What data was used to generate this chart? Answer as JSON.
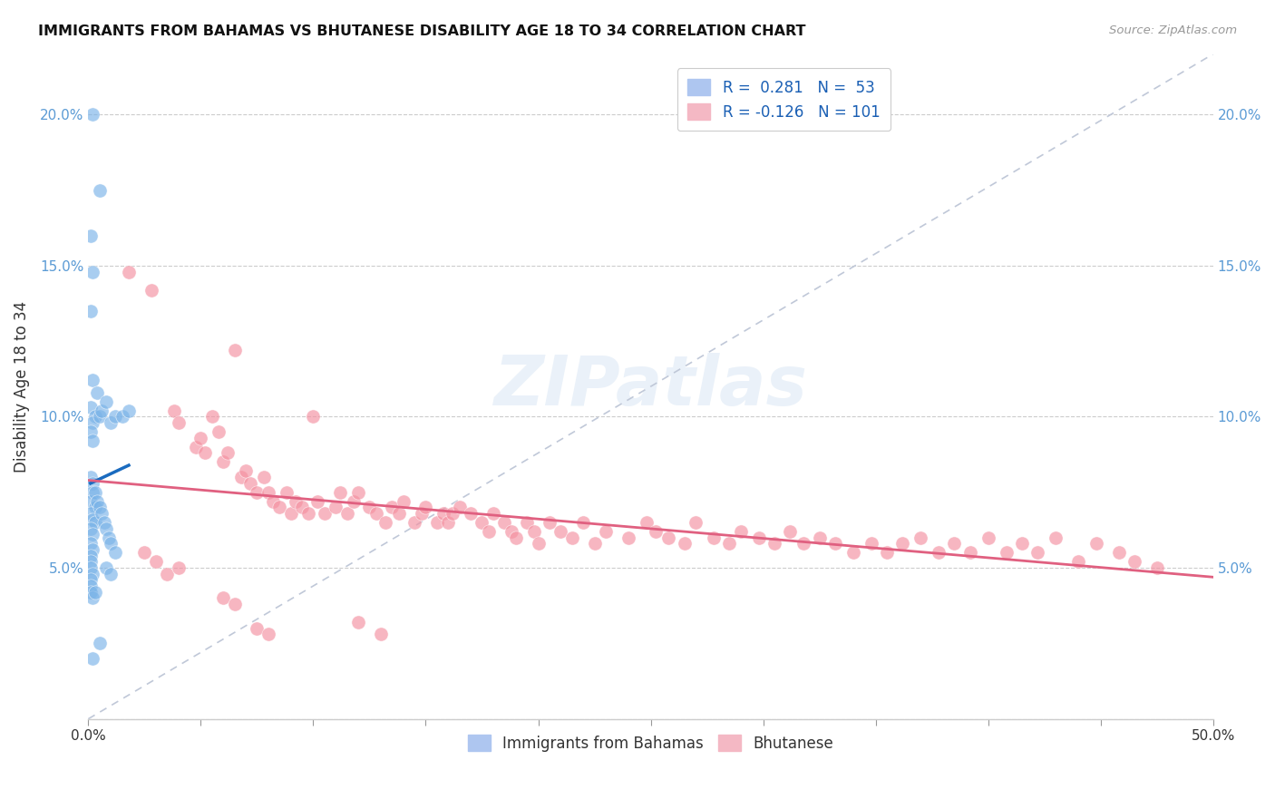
{
  "title": "IMMIGRANTS FROM BAHAMAS VS BHUTANESE DISABILITY AGE 18 TO 34 CORRELATION CHART",
  "source": "Source: ZipAtlas.com",
  "ylabel": "Disability Age 18 to 34",
  "xlim": [
    0.0,
    0.5
  ],
  "ylim": [
    0.0,
    0.22
  ],
  "y_ticks": [
    0.0,
    0.05,
    0.1,
    0.15,
    0.2
  ],
  "x_ticks": [
    0.0,
    0.05,
    0.1,
    0.15,
    0.2,
    0.25,
    0.3,
    0.35,
    0.4,
    0.45,
    0.5
  ],
  "legend_labels": [
    "Immigrants from Bahamas",
    "Bhutanese"
  ],
  "bahamas_color": "#7ab3e8",
  "bhutanese_color": "#f490a0",
  "bahamas_line_color": "#1a6bbf",
  "bhutanese_line_color": "#e06080",
  "dash_color": "#c0c8d8",
  "watermark": "ZIPatlas",
  "bahamas_scatter": [
    [
      0.002,
      0.2
    ],
    [
      0.005,
      0.175
    ],
    [
      0.001,
      0.16
    ],
    [
      0.002,
      0.148
    ],
    [
      0.001,
      0.135
    ],
    [
      0.002,
      0.112
    ],
    [
      0.004,
      0.108
    ],
    [
      0.001,
      0.103
    ],
    [
      0.003,
      0.1
    ],
    [
      0.002,
      0.098
    ],
    [
      0.001,
      0.095
    ],
    [
      0.002,
      0.092
    ],
    [
      0.005,
      0.1
    ],
    [
      0.006,
      0.102
    ],
    [
      0.008,
      0.105
    ],
    [
      0.01,
      0.098
    ],
    [
      0.012,
      0.1
    ],
    [
      0.015,
      0.1
    ],
    [
      0.018,
      0.102
    ],
    [
      0.001,
      0.08
    ],
    [
      0.002,
      0.078
    ],
    [
      0.002,
      0.075
    ],
    [
      0.001,
      0.072
    ],
    [
      0.003,
      0.07
    ],
    [
      0.001,
      0.068
    ],
    [
      0.002,
      0.066
    ],
    [
      0.003,
      0.065
    ],
    [
      0.001,
      0.063
    ],
    [
      0.002,
      0.061
    ],
    [
      0.001,
      0.058
    ],
    [
      0.002,
      0.056
    ],
    [
      0.001,
      0.054
    ],
    [
      0.001,
      0.052
    ],
    [
      0.001,
      0.05
    ],
    [
      0.002,
      0.048
    ],
    [
      0.001,
      0.046
    ],
    [
      0.001,
      0.044
    ],
    [
      0.001,
      0.042
    ],
    [
      0.002,
      0.04
    ],
    [
      0.003,
      0.075
    ],
    [
      0.004,
      0.072
    ],
    [
      0.005,
      0.07
    ],
    [
      0.006,
      0.068
    ],
    [
      0.007,
      0.065
    ],
    [
      0.008,
      0.063
    ],
    [
      0.009,
      0.06
    ],
    [
      0.01,
      0.058
    ],
    [
      0.012,
      0.055
    ],
    [
      0.008,
      0.05
    ],
    [
      0.01,
      0.048
    ],
    [
      0.003,
      0.042
    ],
    [
      0.005,
      0.025
    ],
    [
      0.002,
      0.02
    ]
  ],
  "bhutanese_scatter": [
    [
      0.018,
      0.148
    ],
    [
      0.028,
      0.142
    ],
    [
      0.038,
      0.102
    ],
    [
      0.04,
      0.098
    ],
    [
      0.048,
      0.09
    ],
    [
      0.05,
      0.093
    ],
    [
      0.052,
      0.088
    ],
    [
      0.055,
      0.1
    ],
    [
      0.058,
      0.095
    ],
    [
      0.06,
      0.085
    ],
    [
      0.062,
      0.088
    ],
    [
      0.065,
      0.122
    ],
    [
      0.068,
      0.08
    ],
    [
      0.07,
      0.082
    ],
    [
      0.072,
      0.078
    ],
    [
      0.075,
      0.075
    ],
    [
      0.078,
      0.08
    ],
    [
      0.08,
      0.075
    ],
    [
      0.082,
      0.072
    ],
    [
      0.085,
      0.07
    ],
    [
      0.088,
      0.075
    ],
    [
      0.09,
      0.068
    ],
    [
      0.092,
      0.072
    ],
    [
      0.095,
      0.07
    ],
    [
      0.098,
      0.068
    ],
    [
      0.1,
      0.1
    ],
    [
      0.102,
      0.072
    ],
    [
      0.105,
      0.068
    ],
    [
      0.11,
      0.07
    ],
    [
      0.112,
      0.075
    ],
    [
      0.115,
      0.068
    ],
    [
      0.118,
      0.072
    ],
    [
      0.12,
      0.075
    ],
    [
      0.125,
      0.07
    ],
    [
      0.128,
      0.068
    ],
    [
      0.132,
      0.065
    ],
    [
      0.135,
      0.07
    ],
    [
      0.138,
      0.068
    ],
    [
      0.14,
      0.072
    ],
    [
      0.145,
      0.065
    ],
    [
      0.148,
      0.068
    ],
    [
      0.15,
      0.07
    ],
    [
      0.155,
      0.065
    ],
    [
      0.158,
      0.068
    ],
    [
      0.16,
      0.065
    ],
    [
      0.162,
      0.068
    ],
    [
      0.165,
      0.07
    ],
    [
      0.17,
      0.068
    ],
    [
      0.175,
      0.065
    ],
    [
      0.178,
      0.062
    ],
    [
      0.18,
      0.068
    ],
    [
      0.185,
      0.065
    ],
    [
      0.188,
      0.062
    ],
    [
      0.19,
      0.06
    ],
    [
      0.195,
      0.065
    ],
    [
      0.198,
      0.062
    ],
    [
      0.2,
      0.058
    ],
    [
      0.205,
      0.065
    ],
    [
      0.21,
      0.062
    ],
    [
      0.215,
      0.06
    ],
    [
      0.22,
      0.065
    ],
    [
      0.225,
      0.058
    ],
    [
      0.23,
      0.062
    ],
    [
      0.24,
      0.06
    ],
    [
      0.248,
      0.065
    ],
    [
      0.252,
      0.062
    ],
    [
      0.258,
      0.06
    ],
    [
      0.265,
      0.058
    ],
    [
      0.27,
      0.065
    ],
    [
      0.278,
      0.06
    ],
    [
      0.285,
      0.058
    ],
    [
      0.29,
      0.062
    ],
    [
      0.298,
      0.06
    ],
    [
      0.305,
      0.058
    ],
    [
      0.312,
      0.062
    ],
    [
      0.318,
      0.058
    ],
    [
      0.325,
      0.06
    ],
    [
      0.332,
      0.058
    ],
    [
      0.34,
      0.055
    ],
    [
      0.348,
      0.058
    ],
    [
      0.355,
      0.055
    ],
    [
      0.362,
      0.058
    ],
    [
      0.37,
      0.06
    ],
    [
      0.378,
      0.055
    ],
    [
      0.385,
      0.058
    ],
    [
      0.392,
      0.055
    ],
    [
      0.4,
      0.06
    ],
    [
      0.408,
      0.055
    ],
    [
      0.415,
      0.058
    ],
    [
      0.422,
      0.055
    ],
    [
      0.43,
      0.06
    ],
    [
      0.44,
      0.052
    ],
    [
      0.448,
      0.058
    ],
    [
      0.458,
      0.055
    ],
    [
      0.465,
      0.052
    ],
    [
      0.475,
      0.05
    ],
    [
      0.025,
      0.055
    ],
    [
      0.03,
      0.052
    ],
    [
      0.035,
      0.048
    ],
    [
      0.04,
      0.05
    ],
    [
      0.06,
      0.04
    ],
    [
      0.065,
      0.038
    ],
    [
      0.075,
      0.03
    ],
    [
      0.08,
      0.028
    ],
    [
      0.12,
      0.032
    ],
    [
      0.13,
      0.028
    ]
  ]
}
